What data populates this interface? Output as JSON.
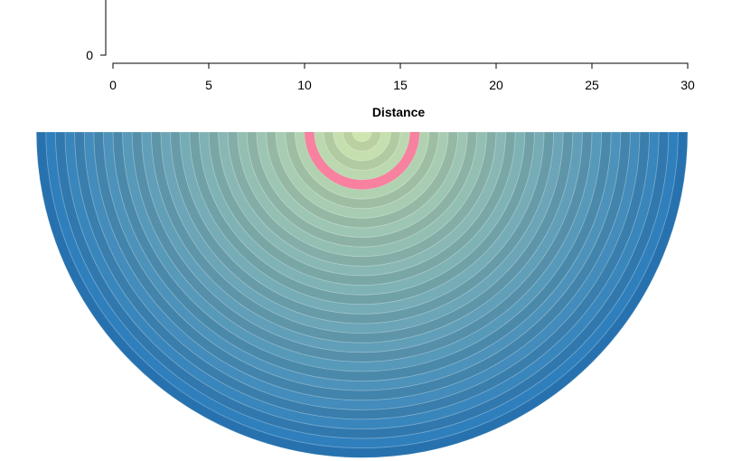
{
  "chart_data": {
    "type": "radial-rings",
    "x_axis": {
      "title": "Distance",
      "domain": [
        0,
        30
      ],
      "ticks": [
        "0",
        "5",
        "10",
        "15",
        "20",
        "25",
        "30"
      ]
    },
    "y_axis": {
      "ticks": [
        "0"
      ]
    },
    "center_distance": 13,
    "ring_outer_radii": [
      0.5,
      1,
      1.5,
      2,
      2.5,
      3,
      3.5,
      4,
      4.5,
      5,
      5.5,
      6,
      6.5,
      7,
      7.5,
      8,
      8.5,
      9,
      9.5,
      10,
      10.5,
      11,
      11.5,
      12,
      12.5,
      13,
      13.5,
      14,
      14.5,
      15,
      15.5,
      16,
      16.5,
      17
    ],
    "highlight_ring": {
      "inner": 2.5,
      "outer": 3,
      "color": "#f7819f"
    },
    "color_range": [
      "#cfe5ae",
      "#2a7cbd"
    ],
    "alternate_darken": 0.08
  }
}
